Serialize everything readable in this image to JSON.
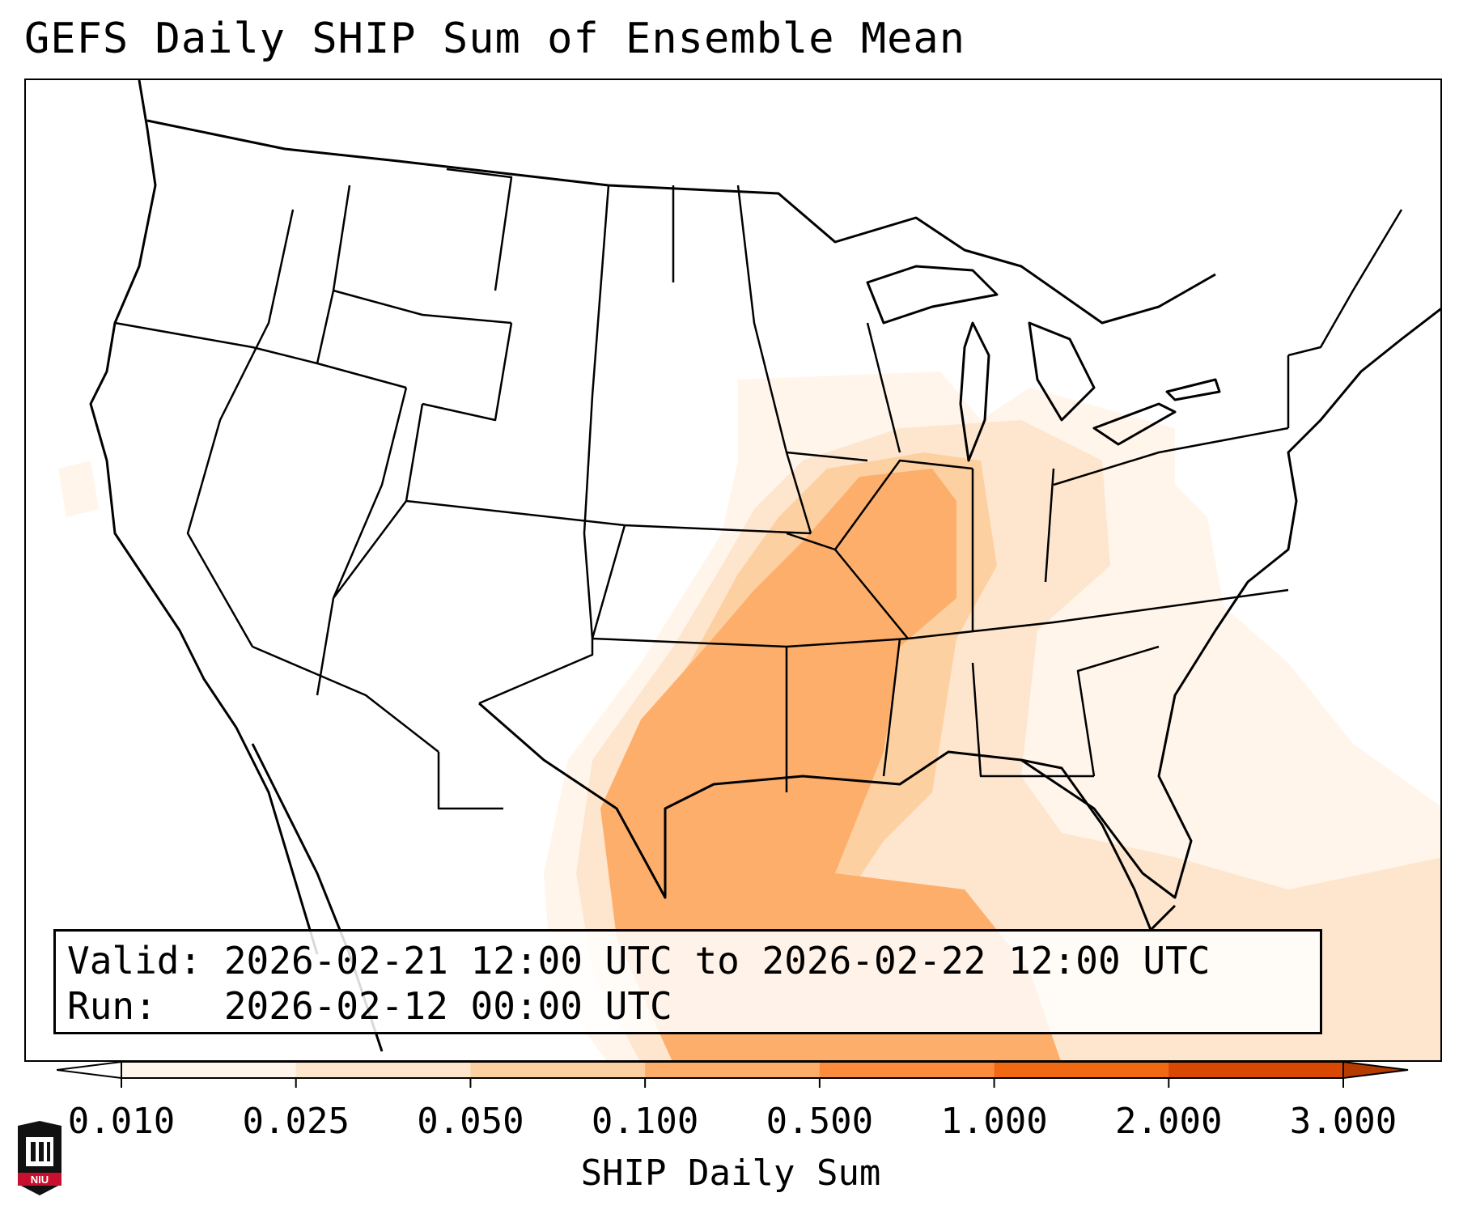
{
  "title": "GEFS Daily SHIP Sum of Ensemble Mean",
  "info": {
    "valid_line": "Valid: 2026-02-21 12:00 UTC to 2026-02-22 12:00 UTC",
    "run_line": "Run:   2026-02-12 00:00 UTC"
  },
  "colorbar": {
    "label": "SHIP Daily Sum",
    "ticks": [
      "0.010",
      "0.025",
      "0.050",
      "0.100",
      "0.500",
      "1.000",
      "2.000",
      "3.000"
    ],
    "colors": [
      "#fff5eb",
      "#fee6ce",
      "#fdd0a2",
      "#fdae6b",
      "#fd8d3c",
      "#f16913",
      "#d94801"
    ],
    "extend": "both"
  },
  "logo": {
    "text": "NIU"
  },
  "colors": {
    "line": "#000000",
    "low": "#fff5eb",
    "light": "#fee6ce",
    "mid": "#fdd0a2",
    "high": "#fdae6b"
  }
}
